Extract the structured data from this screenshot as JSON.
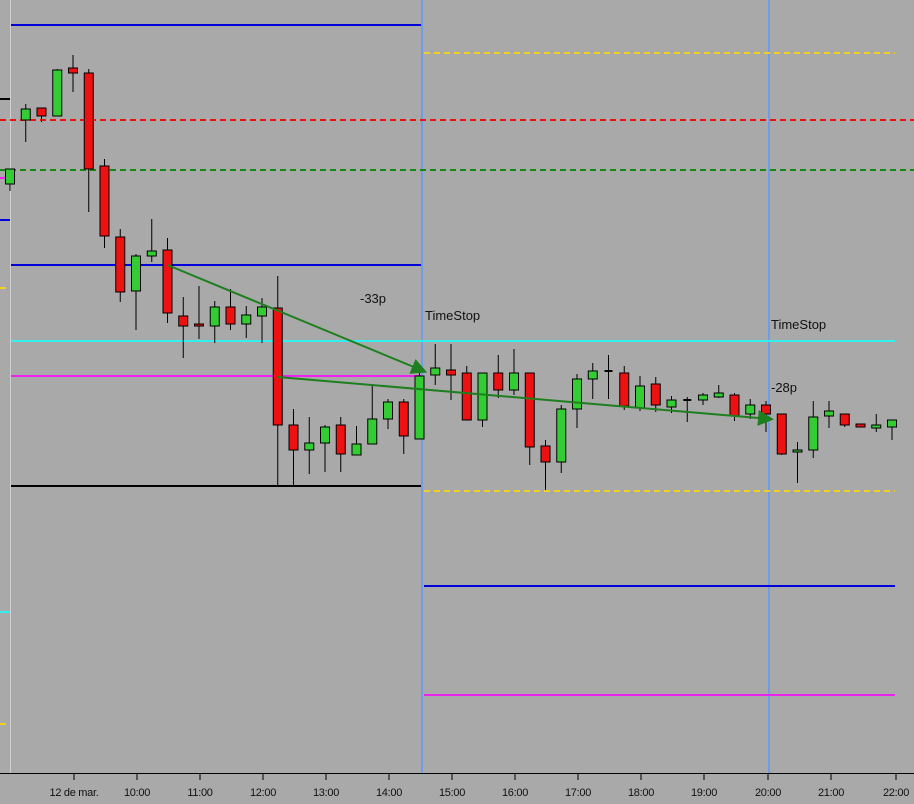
{
  "chart_data": {
    "type": "candlestick",
    "title": "",
    "xlabel": "",
    "ylabel": "",
    "x_ticks": [
      "12 de mar.",
      "10:00",
      "11:00",
      "12:00",
      "13:00",
      "14:00",
      "15:00",
      "16:00",
      "17:00",
      "18:00",
      "19:00",
      "20:00",
      "21:00",
      "22:00"
    ],
    "candle_interval_minutes": 15,
    "ylim": [
      0,
      800
    ],
    "grid": false,
    "colors": {
      "background": "#a9a9a9",
      "up": "#33cc33",
      "down": "#ee1111",
      "vline": "#6f9be8",
      "arrow": "#1e7f1e"
    },
    "candles": [
      {
        "o": 616,
        "h": 631,
        "l": 609,
        "c": 631
      },
      {
        "o": 680,
        "h": 696,
        "l": 658,
        "c": 691
      },
      {
        "o": 692,
        "h": 692,
        "l": 678,
        "c": 684
      },
      {
        "o": 684,
        "h": 731,
        "l": 684,
        "c": 730
      },
      {
        "o": 732,
        "h": 745,
        "l": 708,
        "c": 727
      },
      {
        "o": 727,
        "h": 731,
        "l": 588,
        "c": 631
      },
      {
        "o": 634,
        "h": 641,
        "l": 552,
        "c": 564
      },
      {
        "o": 563,
        "h": 571,
        "l": 498,
        "c": 508
      },
      {
        "o": 509,
        "h": 546,
        "l": 470,
        "c": 544
      },
      {
        "o": 544,
        "h": 581,
        "l": 538,
        "c": 549
      },
      {
        "o": 550,
        "h": 562,
        "l": 477,
        "c": 487
      },
      {
        "o": 484,
        "h": 503,
        "l": 442,
        "c": 474
      },
      {
        "o": 476,
        "h": 514,
        "l": 461,
        "c": 474
      },
      {
        "o": 474,
        "h": 499,
        "l": 457,
        "c": 493
      },
      {
        "o": 493,
        "h": 511,
        "l": 470,
        "c": 476
      },
      {
        "o": 476,
        "h": 494,
        "l": 462,
        "c": 485
      },
      {
        "o": 484,
        "h": 502,
        "l": 457,
        "c": 493
      },
      {
        "o": 492,
        "h": 524,
        "l": 315,
        "c": 375
      },
      {
        "o": 375,
        "h": 391,
        "l": 315,
        "c": 350
      },
      {
        "o": 350,
        "h": 383,
        "l": 326,
        "c": 357
      },
      {
        "o": 357,
        "h": 375,
        "l": 328,
        "c": 373
      },
      {
        "o": 375,
        "h": 383,
        "l": 328,
        "c": 346
      },
      {
        "o": 345,
        "h": 374,
        "l": 345,
        "c": 356
      },
      {
        "o": 356,
        "h": 415,
        "l": 356,
        "c": 381
      },
      {
        "o": 381,
        "h": 401,
        "l": 371,
        "c": 398
      },
      {
        "o": 398,
        "h": 401,
        "l": 346,
        "c": 364
      },
      {
        "o": 361,
        "h": 434,
        "l": 361,
        "c": 424
      },
      {
        "o": 425,
        "h": 456,
        "l": 415,
        "c": 432
      },
      {
        "o": 430,
        "h": 456,
        "l": 400,
        "c": 425
      },
      {
        "o": 427,
        "h": 434,
        "l": 380,
        "c": 380
      },
      {
        "o": 380,
        "h": 427,
        "l": 373,
        "c": 427
      },
      {
        "o": 427,
        "h": 445,
        "l": 402,
        "c": 410
      },
      {
        "o": 410,
        "h": 451,
        "l": 405,
        "c": 427
      },
      {
        "o": 427,
        "h": 427,
        "l": 335,
        "c": 353
      },
      {
        "o": 354,
        "h": 360,
        "l": 310,
        "c": 338
      },
      {
        "o": 338,
        "h": 395,
        "l": 327,
        "c": 391
      },
      {
        "o": 391,
        "h": 426,
        "l": 372,
        "c": 421
      },
      {
        "o": 421,
        "h": 437,
        "l": 401,
        "c": 429
      },
      {
        "o": 429,
        "h": 445,
        "l": 401,
        "c": 429
      },
      {
        "o": 427,
        "h": 434,
        "l": 390,
        "c": 394
      },
      {
        "o": 392,
        "h": 424,
        "l": 389,
        "c": 414
      },
      {
        "o": 416,
        "h": 423,
        "l": 388,
        "c": 395
      },
      {
        "o": 393,
        "h": 404,
        "l": 387,
        "c": 400
      },
      {
        "o": 400,
        "h": 403,
        "l": 378,
        "c": 400
      },
      {
        "o": 400,
        "h": 407,
        "l": 395,
        "c": 405
      },
      {
        "o": 403,
        "h": 415,
        "l": 402,
        "c": 407
      },
      {
        "o": 405,
        "h": 407,
        "l": 379,
        "c": 384
      },
      {
        "o": 386,
        "h": 401,
        "l": 381,
        "c": 395
      },
      {
        "o": 395,
        "h": 399,
        "l": 368,
        "c": 386
      },
      {
        "o": 386,
        "h": 386,
        "l": 345,
        "c": 346
      },
      {
        "o": 348,
        "h": 358,
        "l": 317,
        "c": 350
      },
      {
        "o": 350,
        "h": 399,
        "l": 342,
        "c": 383
      },
      {
        "o": 384,
        "h": 399,
        "l": 372,
        "c": 389
      },
      {
        "o": 386,
        "h": 386,
        "l": 373,
        "c": 375
      },
      {
        "o": 376,
        "h": 376,
        "l": 373,
        "c": 373
      },
      {
        "o": 372,
        "h": 386,
        "l": 368,
        "c": 375
      },
      {
        "o": 373,
        "h": 380,
        "l": 360,
        "c": 380
      }
    ],
    "levels_session1": [
      {
        "price": 775,
        "color": "#0000dd",
        "style": "solid"
      },
      {
        "price": 535,
        "color": "#0000dd",
        "style": "solid"
      },
      {
        "price": 459,
        "color": "#33eeee",
        "style": "solid",
        "extends": true
      },
      {
        "price": 424,
        "color": "#ee22ee",
        "style": "solid"
      },
      {
        "price": 314,
        "color": "#000000",
        "style": "solid"
      }
    ],
    "levels_session2": [
      {
        "price": 747,
        "color": "#f0d020",
        "style": "dashed"
      },
      {
        "price": 309,
        "color": "#f0d020",
        "style": "dashed"
      },
      {
        "price": 214,
        "color": "#0000dd",
        "style": "solid"
      },
      {
        "price": 105,
        "color": "#ee22ee",
        "style": "solid"
      }
    ],
    "levels_full": [
      {
        "price": 680,
        "color": "#ee1111",
        "style": "dashed"
      },
      {
        "price": 630,
        "color": "#118811",
        "style": "dashed"
      }
    ],
    "levels_prior_stubs": [
      {
        "price": 701,
        "color": "#000000",
        "style": "solid"
      },
      {
        "price": 622,
        "color": "#ee22ee",
        "style": "solid"
      },
      {
        "price": 580,
        "color": "#0000dd",
        "style": "solid"
      },
      {
        "price": 512,
        "color": "#f0d020",
        "style": "dashed"
      },
      {
        "price": 188,
        "color": "#33eeee",
        "style": "solid"
      },
      {
        "price": 76,
        "color": "#f0d020",
        "style": "dashed"
      }
    ],
    "vertical_markers": [
      "14:30",
      "20:00"
    ],
    "trades": [
      {
        "from_candle": 10,
        "from_price": 535,
        "to_candle": 26,
        "to_price": 429,
        "result": "-33p",
        "exit_label": "TimeStop"
      },
      {
        "from_candle": 17,
        "from_price": 423,
        "to_candle": 48,
        "to_price": 381,
        "result": "-28p",
        "exit_label": "TimeStop"
      }
    ]
  }
}
